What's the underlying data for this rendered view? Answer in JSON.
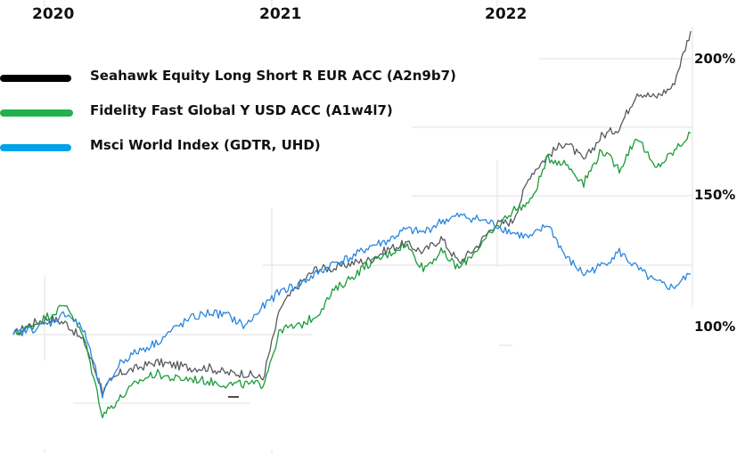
{
  "chart_data": {
    "type": "line",
    "title": "",
    "xlabel": "",
    "ylabel": "",
    "x_tick_labels": [
      "2020",
      "2021",
      "2022"
    ],
    "y_tick_labels": [
      "200%",
      "150%",
      "100%"
    ],
    "ylim": [
      65,
      210
    ],
    "grid": true,
    "legend_position": "top-left",
    "x": [
      "2019-10",
      "2019-12",
      "2020-01",
      "2020-02",
      "2020-02b",
      "2020-03",
      "2020-03b",
      "2020-04",
      "2020-05",
      "2020-06",
      "2020-07",
      "2020-08",
      "2020-09",
      "2020-10",
      "2020-11",
      "2020-12",
      "2021-01",
      "2021-02",
      "2021-03",
      "2021-04",
      "2021-05",
      "2021-06",
      "2021-07",
      "2021-08",
      "2021-09",
      "2021-10",
      "2021-11",
      "2021-12",
      "2022-01",
      "2022-02",
      "2022-03",
      "2022-04",
      "2022-05",
      "2022-06",
      "2022-07",
      "2022-08",
      "2022-09",
      "2022-10",
      "2022-11"
    ],
    "series": [
      {
        "name": "Seahawk Equity Long Short R EUR ACC (A2n9b7)",
        "color": "#555a60",
        "legend_color": "#000000",
        "values": [
          100,
          104,
          106,
          104,
          97,
          80,
          86,
          88,
          90,
          89,
          88,
          88,
          86,
          86,
          84,
          110,
          118,
          124,
          124,
          126,
          127,
          131,
          133,
          130,
          135,
          126,
          132,
          140,
          141,
          158,
          165,
          170,
          163,
          172,
          175,
          188,
          186,
          190,
          210
        ]
      },
      {
        "name": "Fidelity Fast Global Y USD ACC (A1w4l7)",
        "color": "#1a9c3a",
        "legend_color": "#22b14c",
        "values": [
          100,
          103,
          107,
          111,
          98,
          71,
          77,
          83,
          86,
          84,
          84,
          83,
          82,
          82,
          82,
          102,
          103,
          107,
          116,
          121,
          126,
          129,
          133,
          124,
          130,
          124,
          131,
          138,
          145,
          148,
          164,
          162,
          155,
          167,
          160,
          172,
          160,
          166,
          173
        ]
      },
      {
        "name": "Msci World Index (GDTR, UHD)",
        "color": "#2a86e0",
        "legend_color": "#00a2e8",
        "values": [
          100,
          102,
          104,
          108,
          101,
          78,
          90,
          94,
          97,
          102,
          106,
          108,
          107,
          103,
          110,
          116,
          118,
          122,
          126,
          128,
          132,
          134,
          138,
          137,
          141,
          143,
          142,
          140,
          137,
          135,
          140,
          128,
          122,
          125,
          130,
          124,
          119,
          117,
          122
        ]
      }
    ]
  },
  "axes": {
    "years": [
      {
        "label": "2020"
      },
      {
        "label": "2021"
      },
      {
        "label": "2022"
      }
    ],
    "percents": [
      {
        "label": "200%"
      },
      {
        "label": "150%"
      },
      {
        "label": "100%"
      }
    ]
  },
  "legend": [
    {
      "label": "Seahawk Equity Long Short R EUR ACC (A2n9b7)",
      "color": "#000000"
    },
    {
      "label": "Fidelity Fast Global Y USD ACC (A1w4l7)",
      "color": "#22b14c"
    },
    {
      "label": "Msci World Index (GDTR, UHD)",
      "color": "#00a2e8"
    }
  ]
}
